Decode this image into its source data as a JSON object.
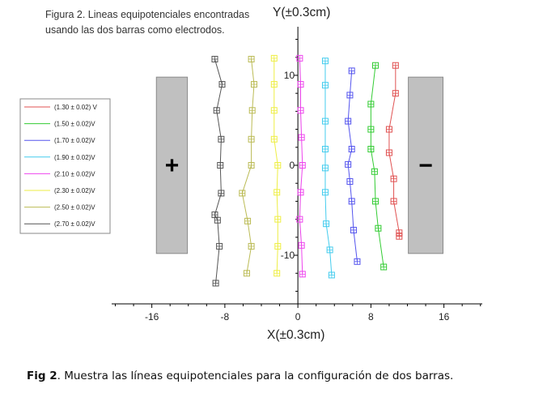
{
  "chart_data": {
    "type": "line",
    "title_lines": [
      "Figura 2. Lineas equipotenciales encontradas",
      "usando las dos barras como electrodos."
    ],
    "xlabel": "X(±0.3cm)",
    "ylabel": "Y(±0.3cm)",
    "xlim": [
      -20.4,
      20.2
    ],
    "ylim": [
      -15.4,
      15.4
    ],
    "x_ticks": [
      -16,
      -8,
      0,
      8,
      16
    ],
    "y_ticks": [
      10,
      0,
      -10
    ],
    "electrodes": [
      {
        "name": "positive",
        "symbol": "+",
        "x0": -15.5,
        "x1": -12.1,
        "y0": -9.8,
        "y1": 9.8
      },
      {
        "name": "negative",
        "symbol": "−",
        "x0": 12.1,
        "x1": 15.9,
        "y0": -9.8,
        "y1": 9.8
      }
    ],
    "series": [
      {
        "name": "(1.30 ± 0.02) V",
        "color": "#e05252",
        "points": [
          [
            10.7,
            11.1
          ],
          [
            10.7,
            8.0
          ],
          [
            10.0,
            4.0
          ],
          [
            10.0,
            1.4
          ],
          [
            10.5,
            -1.5
          ],
          [
            10.5,
            -4.0
          ],
          [
            11.1,
            -7.5
          ],
          [
            11.1,
            -7.9
          ]
        ]
      },
      {
        "name": "(1.50 ± 0.02)V",
        "color": "#33cc33",
        "points": [
          [
            8.5,
            11.1
          ],
          [
            8.0,
            6.8
          ],
          [
            8.0,
            4.0
          ],
          [
            8.0,
            1.8
          ],
          [
            8.4,
            -0.7
          ],
          [
            8.5,
            -4.0
          ],
          [
            8.8,
            -7.0
          ],
          [
            9.4,
            -11.3
          ]
        ]
      },
      {
        "name": "(1.70 ± 0.02)V",
        "color": "#5555ee",
        "points": [
          [
            5.9,
            10.5
          ],
          [
            5.7,
            7.8
          ],
          [
            5.5,
            4.9
          ],
          [
            5.9,
            1.8
          ],
          [
            5.5,
            0.1
          ],
          [
            5.7,
            -1.8
          ],
          [
            5.9,
            -4.0
          ],
          [
            6.1,
            -7.2
          ],
          [
            6.5,
            -10.7
          ]
        ]
      },
      {
        "name": "(1.90 ± 0.02)V",
        "color": "#44ccee",
        "points": [
          [
            3.0,
            11.6
          ],
          [
            3.0,
            8.9
          ],
          [
            3.0,
            4.9
          ],
          [
            3.0,
            1.8
          ],
          [
            3.0,
            -0.3
          ],
          [
            3.0,
            -3.0
          ],
          [
            3.1,
            -6.5
          ],
          [
            3.5,
            -9.4
          ],
          [
            3.7,
            -12.2
          ]
        ]
      },
      {
        "name": "(2.10 ± 0.02)V",
        "color": "#ee44ee",
        "points": [
          [
            0.2,
            11.9
          ],
          [
            0.3,
            9.0
          ],
          [
            0.3,
            6.1
          ],
          [
            0.4,
            3.1
          ],
          [
            0.5,
            0.0
          ],
          [
            0.3,
            -3.0
          ],
          [
            0.2,
            -6.0
          ],
          [
            0.4,
            -8.9
          ],
          [
            0.5,
            -12.1
          ]
        ]
      },
      {
        "name": "(2.30 ± 0.02)V",
        "color": "#eeee44",
        "points": [
          [
            -2.6,
            11.9
          ],
          [
            -2.6,
            9.0
          ],
          [
            -2.6,
            6.1
          ],
          [
            -2.6,
            2.9
          ],
          [
            -2.2,
            0.0
          ],
          [
            -2.3,
            -3.0
          ],
          [
            -2.2,
            -6.0
          ],
          [
            -2.2,
            -9.0
          ],
          [
            -2.3,
            -12.0
          ]
        ]
      },
      {
        "name": "(2.50 ± 0.02)V",
        "color": "#bbbb55",
        "points": [
          [
            -5.1,
            11.8
          ],
          [
            -4.8,
            9.0
          ],
          [
            -5.0,
            6.1
          ],
          [
            -5.1,
            2.9
          ],
          [
            -5.1,
            0.0
          ],
          [
            -6.1,
            -3.1
          ],
          [
            -5.5,
            -6.2
          ],
          [
            -5.1,
            -9.0
          ],
          [
            -5.6,
            -12.0
          ]
        ]
      },
      {
        "name": "(2.70 ± 0.02)V",
        "color": "#555555",
        "points": [
          [
            -9.1,
            11.8
          ],
          [
            -8.3,
            9.0
          ],
          [
            -8.9,
            6.1
          ],
          [
            -8.4,
            2.9
          ],
          [
            -8.5,
            0.0
          ],
          [
            -8.4,
            -3.1
          ],
          [
            -9.1,
            -5.5
          ],
          [
            -8.8,
            -6.1
          ],
          [
            -8.6,
            -9.0
          ],
          [
            -9.0,
            -13.1
          ]
        ]
      }
    ]
  },
  "caption": {
    "label": "Fig 2",
    "text": ". Muestra las líneas equipotenciales para la configuración de dos barras."
  }
}
